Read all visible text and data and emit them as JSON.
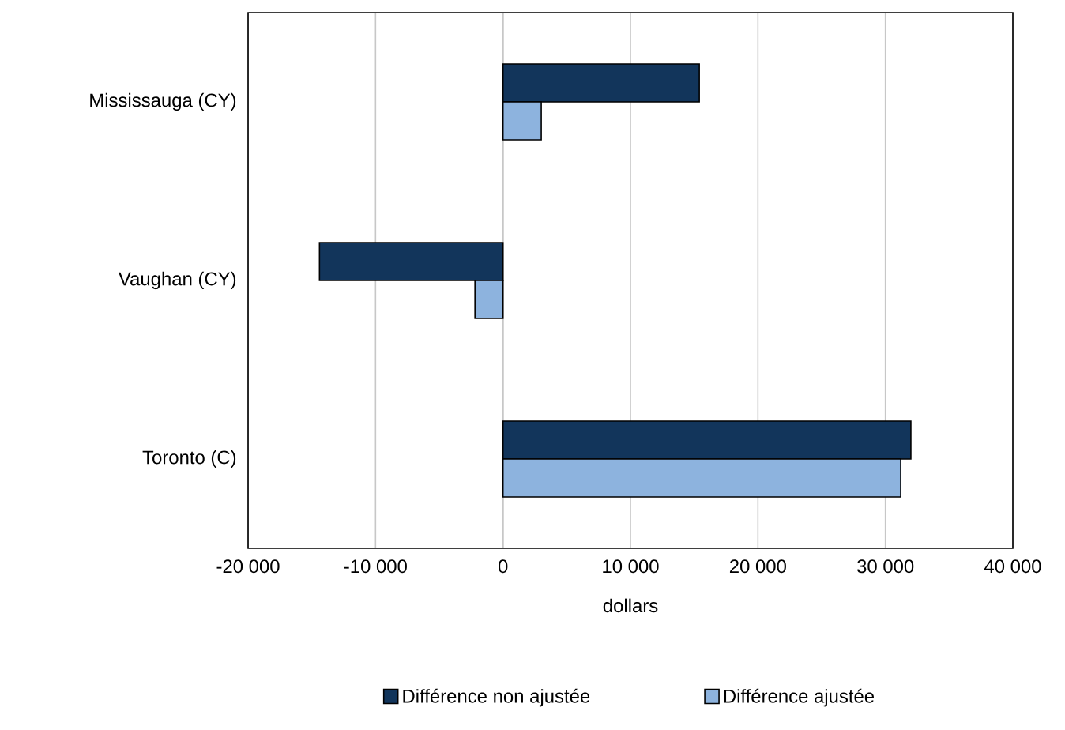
{
  "chart_data": {
    "type": "bar",
    "orientation": "horizontal",
    "categories": [
      "Mississauga (CY)",
      "Vaughan (CY)",
      "Toronto (C)"
    ],
    "series": [
      {
        "name": "Différence non ajustée",
        "color": "#12355b",
        "values": [
          15400,
          -14400,
          32000
        ]
      },
      {
        "name": "Différence ajustée",
        "color": "#8db3de",
        "values": [
          3000,
          -2200,
          31200
        ]
      }
    ],
    "xlabel": "dollars",
    "xlim": [
      -20000,
      40000
    ],
    "xticks": [
      {
        "value": -20000,
        "label": "-20 000"
      },
      {
        "value": -10000,
        "label": "-10 000"
      },
      0,
      {
        "value": 10000,
        "label": "10 000"
      },
      {
        "value": 20000,
        "label": "20 000"
      },
      {
        "value": 30000,
        "label": "30 000"
      },
      {
        "value": 40000,
        "label": "40 000"
      }
    ],
    "grid": "x",
    "legend": "bottom"
  }
}
